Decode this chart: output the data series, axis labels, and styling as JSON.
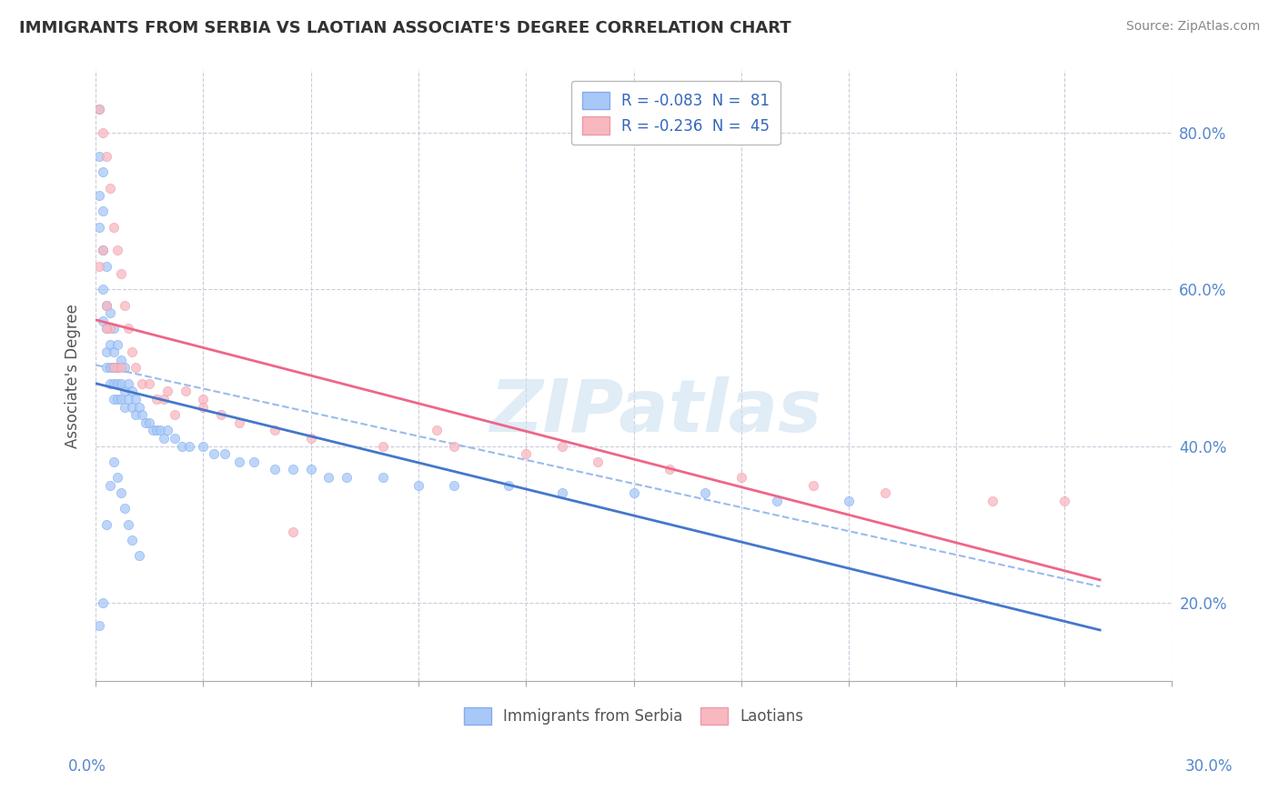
{
  "title": "IMMIGRANTS FROM SERBIA VS LAOTIAN ASSOCIATE'S DEGREE CORRELATION CHART",
  "source_text": "Source: ZipAtlas.com",
  "ylabel": "Associate's Degree",
  "bottom_legend": [
    "Immigrants from Serbia",
    "Laotians"
  ],
  "xlim": [
    0.0,
    0.3
  ],
  "ylim": [
    0.1,
    0.88
  ],
  "yticks": [
    0.2,
    0.4,
    0.6,
    0.8
  ],
  "ytick_labels": [
    "20.0%",
    "40.0%",
    "60.0%",
    "80.0%"
  ],
  "watermark": "ZIPatlas",
  "serbia_color": "#a8c8f8",
  "laotian_color": "#f8b8c0",
  "serbia_line_color": "#4477cc",
  "laotian_line_color": "#ee6688",
  "dashed_line_color": "#99bbee",
  "serbia_R": -0.083,
  "serbia_N": 81,
  "laotian_R": -0.236,
  "laotian_N": 45,
  "serbia_scatter_x": [
    0.001,
    0.001,
    0.001,
    0.001,
    0.002,
    0.002,
    0.002,
    0.002,
    0.002,
    0.003,
    0.003,
    0.003,
    0.003,
    0.003,
    0.004,
    0.004,
    0.004,
    0.004,
    0.005,
    0.005,
    0.005,
    0.005,
    0.005,
    0.006,
    0.006,
    0.006,
    0.006,
    0.007,
    0.007,
    0.007,
    0.008,
    0.008,
    0.008,
    0.009,
    0.009,
    0.01,
    0.01,
    0.011,
    0.011,
    0.012,
    0.013,
    0.014,
    0.015,
    0.016,
    0.017,
    0.018,
    0.019,
    0.02,
    0.022,
    0.024,
    0.026,
    0.03,
    0.033,
    0.036,
    0.04,
    0.044,
    0.05,
    0.055,
    0.06,
    0.065,
    0.07,
    0.08,
    0.09,
    0.1,
    0.115,
    0.13,
    0.15,
    0.17,
    0.19,
    0.21,
    0.001,
    0.002,
    0.003,
    0.004,
    0.005,
    0.006,
    0.007,
    0.008,
    0.009,
    0.01,
    0.012
  ],
  "serbia_scatter_y": [
    0.83,
    0.77,
    0.72,
    0.68,
    0.75,
    0.7,
    0.65,
    0.6,
    0.56,
    0.63,
    0.58,
    0.55,
    0.52,
    0.5,
    0.57,
    0.53,
    0.5,
    0.48,
    0.55,
    0.52,
    0.5,
    0.48,
    0.46,
    0.53,
    0.5,
    0.48,
    0.46,
    0.51,
    0.48,
    0.46,
    0.5,
    0.47,
    0.45,
    0.48,
    0.46,
    0.47,
    0.45,
    0.46,
    0.44,
    0.45,
    0.44,
    0.43,
    0.43,
    0.42,
    0.42,
    0.42,
    0.41,
    0.42,
    0.41,
    0.4,
    0.4,
    0.4,
    0.39,
    0.39,
    0.38,
    0.38,
    0.37,
    0.37,
    0.37,
    0.36,
    0.36,
    0.36,
    0.35,
    0.35,
    0.35,
    0.34,
    0.34,
    0.34,
    0.33,
    0.33,
    0.17,
    0.2,
    0.3,
    0.35,
    0.38,
    0.36,
    0.34,
    0.32,
    0.3,
    0.28,
    0.26
  ],
  "laotian_scatter_x": [
    0.001,
    0.001,
    0.002,
    0.002,
    0.003,
    0.003,
    0.004,
    0.004,
    0.005,
    0.006,
    0.006,
    0.007,
    0.008,
    0.009,
    0.01,
    0.011,
    0.013,
    0.015,
    0.017,
    0.019,
    0.022,
    0.025,
    0.03,
    0.035,
    0.04,
    0.05,
    0.06,
    0.08,
    0.1,
    0.12,
    0.14,
    0.16,
    0.18,
    0.2,
    0.22,
    0.25,
    0.003,
    0.005,
    0.007,
    0.02,
    0.03,
    0.055,
    0.095,
    0.13,
    0.27
  ],
  "laotian_scatter_y": [
    0.83,
    0.63,
    0.8,
    0.65,
    0.77,
    0.58,
    0.73,
    0.55,
    0.68,
    0.65,
    0.5,
    0.62,
    0.58,
    0.55,
    0.52,
    0.5,
    0.48,
    0.48,
    0.46,
    0.46,
    0.44,
    0.47,
    0.46,
    0.44,
    0.43,
    0.42,
    0.41,
    0.4,
    0.4,
    0.39,
    0.38,
    0.37,
    0.36,
    0.35,
    0.34,
    0.33,
    0.55,
    0.5,
    0.5,
    0.47,
    0.45,
    0.29,
    0.42,
    0.4,
    0.33
  ]
}
